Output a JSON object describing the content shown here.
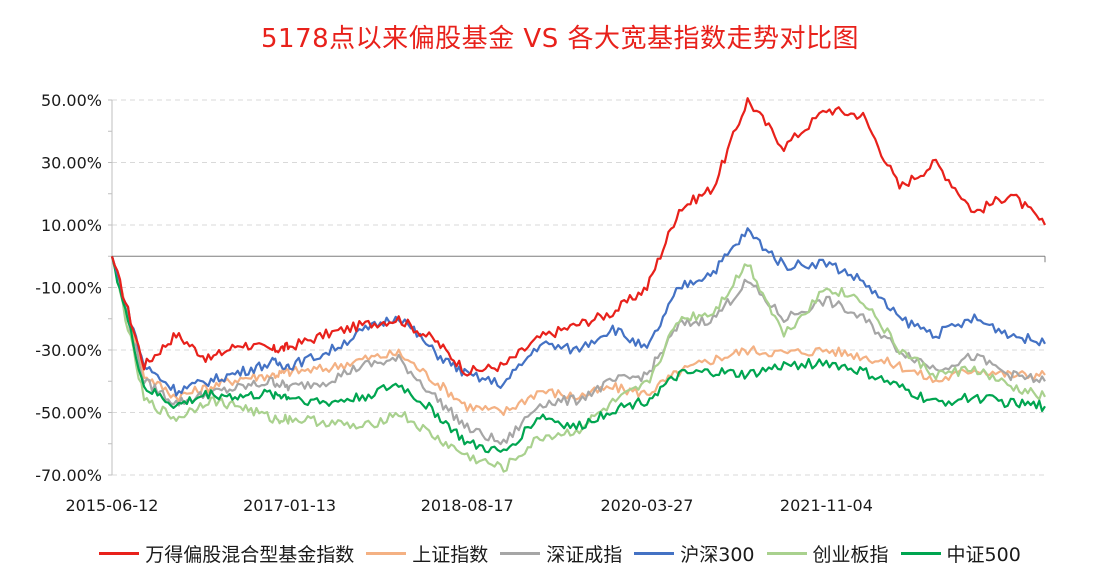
{
  "chart_data": {
    "type": "line",
    "title": "5178点以来偏股基金 VS 各大宽基指数走势对比图",
    "xlabel": "",
    "ylabel": "",
    "x": [
      "2015-06-12",
      "2015-09-25",
      "2016-01-08",
      "2016-04-22",
      "2016-08-05",
      "2016-11-18",
      "2017-01-13",
      "2017-05-12",
      "2017-09-08",
      "2018-01-05",
      "2018-05-04",
      "2018-08-17",
      "2018-12-14",
      "2019-04-12",
      "2019-08-09",
      "2019-12-06",
      "2020-03-27",
      "2020-07-10",
      "2020-10-30",
      "2021-02-19",
      "2021-06-18",
      "2021-11-04",
      "2022-03-04",
      "2022-07-01",
      "2022-10-28",
      "2023-03-03",
      "2023-06-30",
      "2023-10-20"
    ],
    "x_ticks": [
      "2015-06-12",
      "2017-01-13",
      "2018-08-17",
      "2020-03-27",
      "2021-11-04"
    ],
    "y_ticks": [
      "50.00%",
      "30.00%",
      "10.00%",
      "-10.00%",
      "-30.00%",
      "-50.00%",
      "-70.00%"
    ],
    "ylim": [
      -70,
      50
    ],
    "grid": true,
    "legend_position": "bottom",
    "series": [
      {
        "name": "万得偏股混合型基金指数",
        "color": "#e8211b",
        "values": [
          0,
          -35,
          -25,
          -33,
          -28,
          -30,
          -29,
          -25,
          -22,
          -20,
          -27,
          -37,
          -35,
          -26,
          -22,
          -18,
          -10,
          15,
          22,
          50,
          35,
          47,
          45,
          22,
          30,
          14,
          20,
          10
        ]
      },
      {
        "name": "上证指数",
        "color": "#f4b183",
        "values": [
          0,
          -38,
          -45,
          -42,
          -39,
          -38,
          -37,
          -36,
          -33,
          -31,
          -40,
          -48,
          -50,
          -43,
          -45,
          -42,
          -44,
          -37,
          -33,
          -30,
          -31,
          -30,
          -32,
          -35,
          -40,
          -36,
          -38,
          -38
        ]
      },
      {
        "name": "深证成指",
        "color": "#a6a6a6",
        "values": [
          0,
          -40,
          -47,
          -44,
          -42,
          -40,
          -42,
          -40,
          -35,
          -33,
          -45,
          -55,
          -60,
          -47,
          -46,
          -40,
          -38,
          -22,
          -20,
          -8,
          -20,
          -14,
          -20,
          -30,
          -36,
          -32,
          -38,
          -40
        ]
      },
      {
        "name": "沪深300",
        "color": "#4472c4",
        "values": [
          0,
          -35,
          -43,
          -40,
          -37,
          -34,
          -35,
          -31,
          -24,
          -19,
          -31,
          -38,
          -41,
          -28,
          -30,
          -23,
          -30,
          -10,
          -5,
          8,
          -3,
          -2,
          -8,
          -20,
          -25,
          -20,
          -25,
          -28
        ]
      },
      {
        "name": "创业板指",
        "color": "#a9d18e",
        "values": [
          0,
          -46,
          -52,
          -46,
          -48,
          -52,
          -52,
          -53,
          -55,
          -50,
          -58,
          -64,
          -68,
          -58,
          -56,
          -47,
          -41,
          -20,
          -18,
          -2,
          -25,
          -10,
          -14,
          -30,
          -38,
          -36,
          -42,
          -45
        ]
      },
      {
        "name": "中证500",
        "color": "#00a550",
        "values": [
          0,
          -42,
          -48,
          -44,
          -45,
          -44,
          -45,
          -47,
          -45,
          -41,
          -50,
          -60,
          -63,
          -51,
          -55,
          -49,
          -46,
          -38,
          -37,
          -38,
          -35,
          -34,
          -37,
          -42,
          -47,
          -45,
          -47,
          -48
        ]
      }
    ]
  }
}
